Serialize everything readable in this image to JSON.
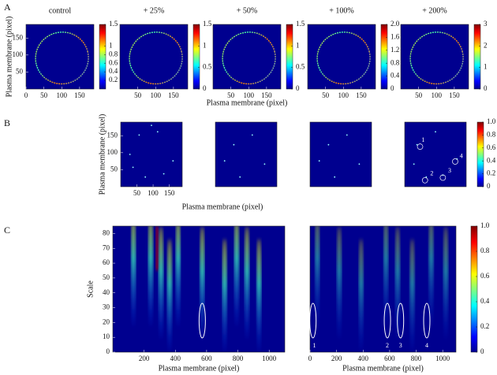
{
  "panels": [
    {
      "label": "A",
      "xlabel": "Plasma membrane (pixel)",
      "ylabel": "Plasma membrane (pixel)"
    },
    {
      "label": "B",
      "xlabel": "Plasma membrane (pixel)",
      "ylabel": "Plasma membrane (pixel)"
    },
    {
      "label": "C",
      "ylabel": "Scale"
    }
  ],
  "chart_data": [
    {
      "type": "heatmap",
      "panel": "A",
      "title": "control",
      "colormap": "jet",
      "xlim": [
        0,
        190
      ],
      "xticks": [
        0,
        50,
        100,
        150
      ],
      "ylim": [
        0,
        190
      ],
      "yticks": [
        50,
        100,
        150
      ],
      "colorbar": {
        "lim": [
          0,
          1.5
        ],
        "ticks": [
          0.2,
          0.4,
          0.6,
          0.8,
          1,
          1.5
        ]
      }
    },
    {
      "type": "heatmap",
      "panel": "A",
      "title": "+ 25%",
      "colormap": "jet",
      "xlim": [
        0,
        190
      ],
      "xticks": [
        50,
        100,
        150
      ],
      "ylim": [
        0,
        190
      ],
      "colorbar": {
        "lim": [
          0,
          1.5
        ],
        "ticks": [
          0,
          0.5,
          1,
          1.5
        ]
      }
    },
    {
      "type": "heatmap",
      "panel": "A",
      "title": "+ 50%",
      "colormap": "jet",
      "xlim": [
        0,
        190
      ],
      "xticks": [
        50,
        100,
        150
      ],
      "ylim": [
        0,
        190
      ],
      "colorbar": {
        "lim": [
          0,
          1.5
        ],
        "ticks": [
          0,
          0.5,
          1,
          1.5
        ]
      }
    },
    {
      "type": "heatmap",
      "panel": "A",
      "title": "+ 100%",
      "colormap": "jet",
      "xlim": [
        0,
        190
      ],
      "xticks": [
        50,
        100,
        150
      ],
      "ylim": [
        0,
        190
      ],
      "colorbar": {
        "lim": [
          0,
          2
        ],
        "ticks": [
          0,
          0.4,
          0.8,
          1.2,
          1.6,
          {
            "value": 2,
            "label": "2.0"
          }
        ]
      }
    },
    {
      "type": "heatmap",
      "panel": "A",
      "title": "+ 200%",
      "colormap": "jet",
      "xlim": [
        0,
        190
      ],
      "xticks": [
        50,
        100,
        150
      ],
      "ylim": [
        0,
        190
      ],
      "colorbar": {
        "lim": [
          0,
          3
        ],
        "ticks": [
          0,
          1,
          2,
          3
        ]
      }
    },
    {
      "type": "heatmap",
      "panel": "B",
      "colormap": "jet",
      "xlim": [
        0,
        190
      ],
      "xticks": [
        50,
        100,
        150
      ],
      "ylim": [
        0,
        190
      ],
      "yticks": [
        50,
        100,
        150
      ]
    },
    {
      "type": "heatmap",
      "panel": "B",
      "colormap": "jet",
      "xlim": [
        0,
        190
      ],
      "ylim": [
        0,
        190
      ]
    },
    {
      "type": "heatmap",
      "panel": "B",
      "colormap": "jet",
      "xlim": [
        0,
        190
      ],
      "ylim": [
        0,
        190
      ]
    },
    {
      "type": "heatmap",
      "panel": "B",
      "colormap": "jet",
      "xlim": [
        0,
        190
      ],
      "ylim": [
        0,
        190
      ],
      "annotations": [
        "1",
        "2",
        "3",
        "4"
      ],
      "colorbar": {
        "lim": [
          0,
          1
        ],
        "ticks": [
          0,
          0.2,
          0.4,
          0.6,
          0.8,
          {
            "value": 1,
            "label": "1.0"
          }
        ]
      }
    },
    {
      "type": "heatmap",
      "panel": "C",
      "colormap": "jet",
      "xlabel": "Plasma membrane (pixel)",
      "xlim": [
        0,
        1100
      ],
      "xticks": [
        200,
        400,
        600,
        800,
        1000
      ],
      "ylim": [
        0,
        85
      ],
      "yticks": [
        0,
        10,
        20,
        30,
        40,
        50,
        60,
        70,
        80
      ]
    },
    {
      "type": "heatmap",
      "panel": "C",
      "colormap": "jet",
      "xlabel": "Plasma membrane (pixel)",
      "xlim": [
        0,
        1100
      ],
      "xticks": [
        0,
        200,
        400,
        600,
        800,
        1000
      ],
      "ylim": [
        0,
        85
      ],
      "annotations": [
        "1",
        "2",
        "3",
        "4"
      ],
      "colorbar": {
        "lim": [
          0,
          1
        ],
        "ticks": [
          0,
          0.2,
          0.4,
          0.6,
          0.8,
          {
            "value": 1,
            "label": "1.0"
          }
        ]
      }
    }
  ]
}
